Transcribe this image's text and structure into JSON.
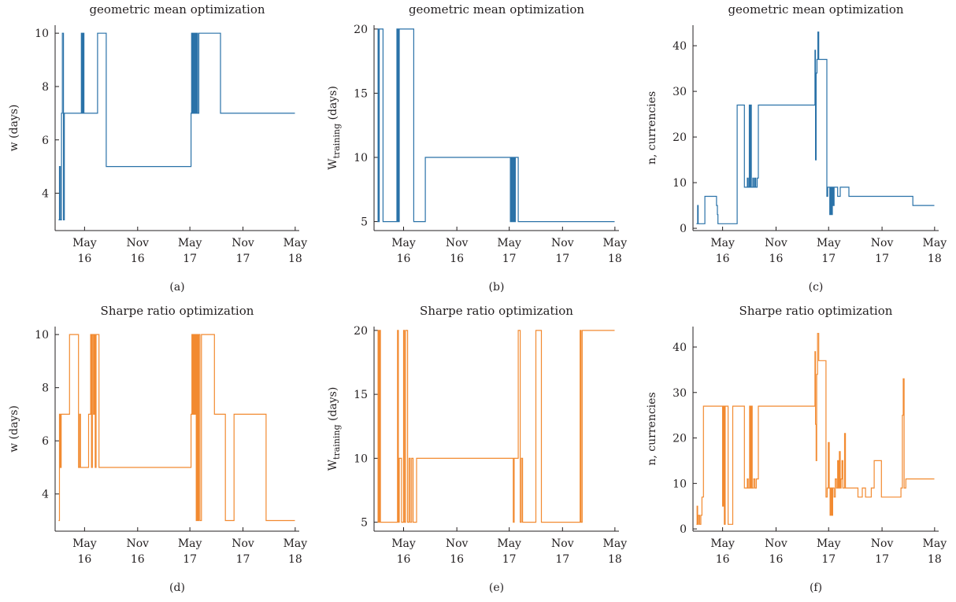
{
  "chart_data": [
    {
      "type": "line",
      "title": "geometric mean optimization",
      "ylabel": "w (days)",
      "panel_label": "(a)",
      "color": "#2a72a8",
      "ylim": [
        2.6,
        10.3
      ],
      "yticks": [
        4,
        6,
        8,
        10
      ],
      "xlim": [
        "2016-01-20",
        "2018-05-15"
      ],
      "xticks": [
        {
          "date": "2016-05-01",
          "line1": "May",
          "line2": "16"
        },
        {
          "date": "2016-11-01",
          "line1": "Nov",
          "line2": "16"
        },
        {
          "date": "2017-05-01",
          "line1": "May",
          "line2": "17"
        },
        {
          "date": "2017-11-01",
          "line1": "Nov",
          "line2": "17"
        },
        {
          "date": "2018-05-01",
          "line1": "May",
          "line2": "18"
        }
      ],
      "steps": [
        [
          "2016-02-01",
          3
        ],
        [
          "2016-02-04",
          5
        ],
        [
          "2016-02-07",
          3
        ],
        [
          "2016-02-11",
          7
        ],
        [
          "2016-02-14",
          10
        ],
        [
          "2016-02-18",
          3
        ],
        [
          "2016-02-21",
          7
        ],
        [
          "2016-04-20",
          10
        ],
        [
          "2016-04-23",
          7
        ],
        [
          "2016-04-26",
          10
        ],
        [
          "2016-04-29",
          7
        ],
        [
          "2016-05-10",
          7
        ],
        [
          "2016-06-15",
          10
        ],
        [
          "2016-07-15",
          5
        ],
        [
          "2017-05-05",
          7
        ],
        [
          "2017-05-07",
          10
        ],
        [
          "2017-05-10",
          7
        ],
        [
          "2017-05-13",
          10
        ],
        [
          "2017-05-16",
          7
        ],
        [
          "2017-05-19",
          10
        ],
        [
          "2017-05-22",
          7
        ],
        [
          "2017-05-25",
          10
        ],
        [
          "2017-05-28",
          7
        ],
        [
          "2017-06-01",
          10
        ],
        [
          "2017-08-15",
          7
        ],
        [
          "2018-04-30",
          7
        ]
      ]
    },
    {
      "type": "line",
      "title": "geometric mean optimization",
      "ylabel": "W",
      "ylabel_sub": "training",
      "ylabel_unit": " (days)",
      "panel_label": "(b)",
      "color": "#2a72a8",
      "ylim": [
        4.3,
        20.3
      ],
      "yticks": [
        5,
        10,
        15,
        20
      ],
      "xlim": [
        "2016-01-20",
        "2018-05-15"
      ],
      "xticks": [
        {
          "date": "2016-05-01",
          "line1": "May",
          "line2": "16"
        },
        {
          "date": "2016-11-01",
          "line1": "Nov",
          "line2": "16"
        },
        {
          "date": "2017-05-01",
          "line1": "May",
          "line2": "17"
        },
        {
          "date": "2017-11-01",
          "line1": "Nov",
          "line2": "17"
        },
        {
          "date": "2018-05-01",
          "line1": "May",
          "line2": "18"
        }
      ],
      "steps": [
        [
          "2016-02-01",
          5
        ],
        [
          "2016-02-03",
          20
        ],
        [
          "2016-02-05",
          5
        ],
        [
          "2016-02-07",
          20
        ],
        [
          "2016-02-20",
          5
        ],
        [
          "2016-04-08",
          20
        ],
        [
          "2016-04-10",
          5
        ],
        [
          "2016-04-12",
          20
        ],
        [
          "2016-04-14",
          5
        ],
        [
          "2016-04-16",
          20
        ],
        [
          "2016-06-05",
          5
        ],
        [
          "2016-07-15",
          10
        ],
        [
          "2017-05-05",
          5
        ],
        [
          "2017-05-07",
          10
        ],
        [
          "2017-05-09",
          5
        ],
        [
          "2017-05-12",
          10
        ],
        [
          "2017-05-14",
          5
        ],
        [
          "2017-05-17",
          10
        ],
        [
          "2017-05-20",
          5
        ],
        [
          "2017-05-22",
          10
        ],
        [
          "2017-06-01",
          5
        ],
        [
          "2018-04-30",
          5
        ]
      ]
    },
    {
      "type": "line",
      "title": "geometric mean optimization",
      "ylabel": "n, currencies",
      "panel_label": "(c)",
      "color": "#2a72a8",
      "ylim": [
        -0.5,
        44.5
      ],
      "yticks": [
        0,
        10,
        20,
        30,
        40
      ],
      "xlim": [
        "2016-01-20",
        "2018-05-15"
      ],
      "xticks": [
        {
          "date": "2016-05-01",
          "line1": "May",
          "line2": "16"
        },
        {
          "date": "2016-11-01",
          "line1": "Nov",
          "line2": "16"
        },
        {
          "date": "2017-05-01",
          "line1": "May",
          "line2": "17"
        },
        {
          "date": "2017-11-01",
          "line1": "Nov",
          "line2": "17"
        },
        {
          "date": "2018-05-01",
          "line1": "May",
          "line2": "18"
        }
      ],
      "steps": [
        [
          "2016-02-01",
          1
        ],
        [
          "2016-02-05",
          5
        ],
        [
          "2016-02-07",
          1
        ],
        [
          "2016-03-01",
          7
        ],
        [
          "2016-04-10",
          5
        ],
        [
          "2016-04-13",
          3
        ],
        [
          "2016-04-15",
          1
        ],
        [
          "2016-06-20",
          27
        ],
        [
          "2016-07-15",
          9
        ],
        [
          "2016-07-25",
          11
        ],
        [
          "2016-07-28",
          9
        ],
        [
          "2016-08-01",
          27
        ],
        [
          "2016-08-03",
          9
        ],
        [
          "2016-08-06",
          27
        ],
        [
          "2016-08-08",
          9
        ],
        [
          "2016-08-13",
          11
        ],
        [
          "2016-08-16",
          9
        ],
        [
          "2016-08-20",
          11
        ],
        [
          "2016-08-23",
          9
        ],
        [
          "2016-08-28",
          11
        ],
        [
          "2016-09-01",
          27
        ],
        [
          "2017-03-15",
          39
        ],
        [
          "2017-03-17",
          15
        ],
        [
          "2017-03-19",
          34
        ],
        [
          "2017-03-22",
          37
        ],
        [
          "2017-03-25",
          43
        ],
        [
          "2017-03-28",
          37
        ],
        [
          "2017-04-25",
          7
        ],
        [
          "2017-04-28",
          9
        ],
        [
          "2017-05-05",
          3
        ],
        [
          "2017-05-08",
          9
        ],
        [
          "2017-05-11",
          3
        ],
        [
          "2017-05-14",
          9
        ],
        [
          "2017-05-17",
          5
        ],
        [
          "2017-05-20",
          9
        ],
        [
          "2017-06-01",
          7
        ],
        [
          "2017-06-10",
          9
        ],
        [
          "2017-07-10",
          7
        ],
        [
          "2018-02-15",
          5
        ],
        [
          "2018-04-30",
          5
        ]
      ]
    },
    {
      "type": "line",
      "title": "Sharpe ratio optimization",
      "ylabel": "w (days)",
      "panel_label": "(d)",
      "color": "#f28a30",
      "ylim": [
        2.6,
        10.3
      ],
      "yticks": [
        4,
        6,
        8,
        10
      ],
      "xlim": [
        "2016-01-20",
        "2018-05-15"
      ],
      "xticks": [
        {
          "date": "2016-05-01",
          "line1": "May",
          "line2": "16"
        },
        {
          "date": "2016-11-01",
          "line1": "Nov",
          "line2": "16"
        },
        {
          "date": "2017-05-01",
          "line1": "May",
          "line2": "17"
        },
        {
          "date": "2017-11-01",
          "line1": "Nov",
          "line2": "17"
        },
        {
          "date": "2018-05-01",
          "line1": "May",
          "line2": "18"
        }
      ],
      "steps": [
        [
          "2016-02-01",
          3
        ],
        [
          "2016-02-04",
          7
        ],
        [
          "2016-02-07",
          5
        ],
        [
          "2016-02-10",
          7
        ],
        [
          "2016-03-10",
          10
        ],
        [
          "2016-04-10",
          5
        ],
        [
          "2016-04-14",
          7
        ],
        [
          "2016-04-17",
          5
        ],
        [
          "2016-05-15",
          7
        ],
        [
          "2016-05-22",
          10
        ],
        [
          "2016-05-25",
          5
        ],
        [
          "2016-05-28",
          10
        ],
        [
          "2016-06-01",
          7
        ],
        [
          "2016-06-04",
          10
        ],
        [
          "2016-06-07",
          5
        ],
        [
          "2016-06-10",
          10
        ],
        [
          "2016-06-20",
          5
        ],
        [
          "2017-05-05",
          7
        ],
        [
          "2017-05-08",
          10
        ],
        [
          "2017-05-11",
          7
        ],
        [
          "2017-05-14",
          10
        ],
        [
          "2017-05-17",
          7
        ],
        [
          "2017-05-20",
          10
        ],
        [
          "2017-05-23",
          3
        ],
        [
          "2017-05-26",
          10
        ],
        [
          "2017-05-29",
          3
        ],
        [
          "2017-06-01",
          10
        ],
        [
          "2017-06-05",
          3
        ],
        [
          "2017-06-10",
          10
        ],
        [
          "2017-07-25",
          7
        ],
        [
          "2017-09-01",
          3
        ],
        [
          "2017-10-01",
          7
        ],
        [
          "2018-01-20",
          3
        ],
        [
          "2018-04-30",
          3
        ]
      ]
    },
    {
      "type": "line",
      "title": "Sharpe ratio optimization",
      "ylabel": "W",
      "ylabel_sub": "training",
      "ylabel_unit": " (days)",
      "panel_label": "(e)",
      "color": "#f28a30",
      "ylim": [
        4.3,
        20.3
      ],
      "yticks": [
        5,
        10,
        15,
        20
      ],
      "xlim": [
        "2016-01-20",
        "2018-05-15"
      ],
      "xticks": [
        {
          "date": "2016-05-01",
          "line1": "May",
          "line2": "16"
        },
        {
          "date": "2016-11-01",
          "line1": "Nov",
          "line2": "16"
        },
        {
          "date": "2017-05-01",
          "line1": "May",
          "line2": "17"
        },
        {
          "date": "2017-11-01",
          "line1": "Nov",
          "line2": "17"
        },
        {
          "date": "2018-05-01",
          "line1": "May",
          "line2": "18"
        }
      ],
      "steps": [
        [
          "2016-02-01",
          5
        ],
        [
          "2016-02-03",
          20
        ],
        [
          "2016-02-05",
          5
        ],
        [
          "2016-02-08",
          20
        ],
        [
          "2016-02-11",
          5
        ],
        [
          "2016-04-10",
          20
        ],
        [
          "2016-04-13",
          5
        ],
        [
          "2016-04-16",
          10
        ],
        [
          "2016-04-24",
          5
        ],
        [
          "2016-05-01",
          20
        ],
        [
          "2016-05-04",
          5
        ],
        [
          "2016-05-08",
          20
        ],
        [
          "2016-05-15",
          5
        ],
        [
          "2016-05-20",
          10
        ],
        [
          "2016-05-24",
          5
        ],
        [
          "2016-05-29",
          10
        ],
        [
          "2016-06-03",
          5
        ],
        [
          "2016-06-15",
          10
        ],
        [
          "2017-05-15",
          5
        ],
        [
          "2017-05-18",
          10
        ],
        [
          "2017-06-01",
          20
        ],
        [
          "2017-06-08",
          5
        ],
        [
          "2017-06-12",
          10
        ],
        [
          "2017-06-16",
          5
        ],
        [
          "2017-08-01",
          20
        ],
        [
          "2017-08-20",
          5
        ],
        [
          "2018-01-01",
          20
        ],
        [
          "2018-01-04",
          5
        ],
        [
          "2018-01-08",
          20
        ],
        [
          "2018-04-30",
          20
        ]
      ]
    },
    {
      "type": "line",
      "title": "Sharpe ratio optimization",
      "ylabel": "n, currencies",
      "panel_label": "(f)",
      "color": "#f28a30",
      "ylim": [
        -0.5,
        44.5
      ],
      "yticks": [
        0,
        10,
        20,
        30,
        40
      ],
      "xlim": [
        "2016-01-20",
        "2018-05-15"
      ],
      "xticks": [
        {
          "date": "2016-05-01",
          "line1": "May",
          "line2": "16"
        },
        {
          "date": "2016-11-01",
          "line1": "Nov",
          "line2": "16"
        },
        {
          "date": "2017-05-01",
          "line1": "May",
          "line2": "17"
        },
        {
          "date": "2017-11-01",
          "line1": "Nov",
          "line2": "17"
        },
        {
          "date": "2018-05-01",
          "line1": "May",
          "line2": "18"
        }
      ],
      "steps": [
        [
          "2016-02-01",
          1
        ],
        [
          "2016-02-03",
          5
        ],
        [
          "2016-02-05",
          1
        ],
        [
          "2016-02-08",
          3
        ],
        [
          "2016-02-12",
          1
        ],
        [
          "2016-02-16",
          3
        ],
        [
          "2016-02-20",
          7
        ],
        [
          "2016-02-25",
          27
        ],
        [
          "2016-05-01",
          5
        ],
        [
          "2016-05-04",
          27
        ],
        [
          "2016-05-07",
          1
        ],
        [
          "2016-05-10",
          27
        ],
        [
          "2016-05-20",
          1
        ],
        [
          "2016-06-05",
          27
        ],
        [
          "2016-07-15",
          9
        ],
        [
          "2016-07-25",
          11
        ],
        [
          "2016-07-28",
          9
        ],
        [
          "2016-08-02",
          27
        ],
        [
          "2016-08-05",
          9
        ],
        [
          "2016-08-08",
          27
        ],
        [
          "2016-08-11",
          9
        ],
        [
          "2016-08-16",
          11
        ],
        [
          "2016-08-20",
          9
        ],
        [
          "2016-08-25",
          11
        ],
        [
          "2016-09-01",
          27
        ],
        [
          "2017-03-15",
          39
        ],
        [
          "2017-03-17",
          23
        ],
        [
          "2017-03-19",
          15
        ],
        [
          "2017-03-21",
          34
        ],
        [
          "2017-03-24",
          43
        ],
        [
          "2017-03-28",
          37
        ],
        [
          "2017-04-22",
          7
        ],
        [
          "2017-04-26",
          9
        ],
        [
          "2017-04-30",
          19
        ],
        [
          "2017-05-03",
          9
        ],
        [
          "2017-05-06",
          3
        ],
        [
          "2017-05-09",
          9
        ],
        [
          "2017-05-12",
          3
        ],
        [
          "2017-05-15",
          9
        ],
        [
          "2017-05-20",
          7
        ],
        [
          "2017-05-24",
          11
        ],
        [
          "2017-05-28",
          9
        ],
        [
          "2017-06-01",
          15
        ],
        [
          "2017-06-04",
          9
        ],
        [
          "2017-06-07",
          17
        ],
        [
          "2017-06-10",
          9
        ],
        [
          "2017-06-13",
          11
        ],
        [
          "2017-06-16",
          15
        ],
        [
          "2017-06-19",
          9
        ],
        [
          "2017-06-25",
          21
        ],
        [
          "2017-06-28",
          9
        ],
        [
          "2017-08-10",
          7
        ],
        [
          "2017-08-25",
          9
        ],
        [
          "2017-09-05",
          7
        ],
        [
          "2017-09-25",
          9
        ],
        [
          "2017-10-05",
          15
        ],
        [
          "2017-10-30",
          7
        ],
        [
          "2018-01-05",
          9
        ],
        [
          "2018-01-10",
          25
        ],
        [
          "2018-01-13",
          33
        ],
        [
          "2018-01-16",
          9
        ],
        [
          "2018-01-22",
          11
        ],
        [
          "2018-04-30",
          11
        ]
      ]
    }
  ]
}
